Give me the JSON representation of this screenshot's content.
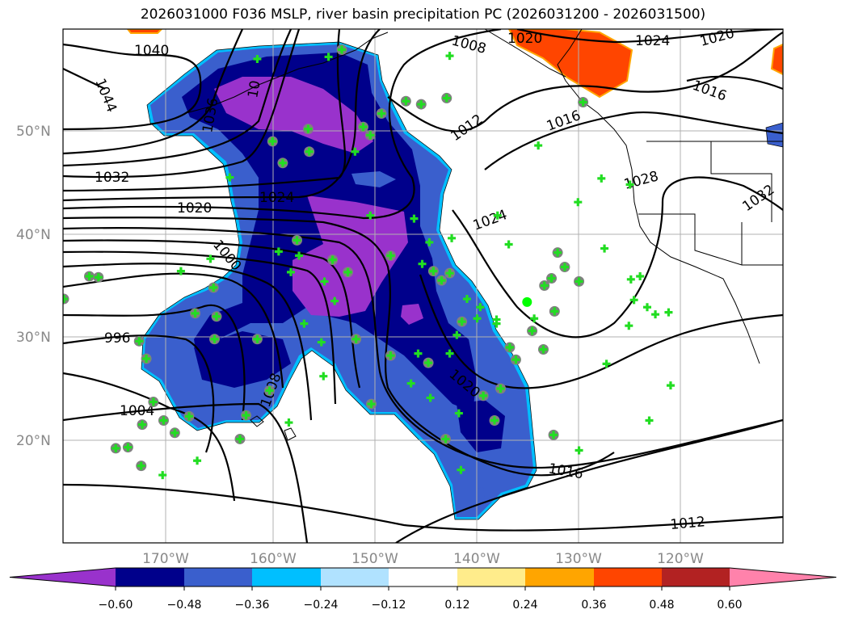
{
  "title": "2026031000 F036 MSLP, river basin precipitation PC (2026031200 - 2026031500)",
  "axes": {
    "lat_labels": [
      "50°N",
      "40°N",
      "30°N",
      "20°N"
    ],
    "lon_labels": [
      "170°W",
      "160°W",
      "150°W",
      "140°W",
      "130°W",
      "120°W"
    ],
    "extent": {
      "lon": [
        -180,
        -110
      ],
      "lat": [
        10,
        60
      ]
    }
  },
  "contour_labels": [
    "1040",
    "1044",
    "1036",
    "1032",
    "1024",
    "1020",
    "1000",
    "996",
    "1004",
    "1008",
    "1008",
    "1020",
    "1024",
    "1020",
    "1016",
    "1012",
    "1016",
    "1028",
    "1032",
    "1024",
    "1020",
    "1016",
    "1012",
    "10"
  ],
  "colorbar": {
    "ticks": [
      "−0.60",
      "−0.48",
      "−0.36",
      "−0.24",
      "−0.12",
      "0.12",
      "0.24",
      "0.36",
      "0.48",
      "0.60"
    ],
    "colors": [
      "#9932cc",
      "#00008b",
      "#3a5fcd",
      "#00bfff",
      "#b0e2ff",
      "#ffffff",
      "#ffec8b",
      "#ffa500",
      "#ff4500",
      "#b22222",
      "#ff82ab"
    ]
  },
  "colors": {
    "station_plus": "#22dd22",
    "station_circle": "#808080",
    "station_dot": "#00ff00"
  },
  "stations": {
    "circle": [
      [
        -177.5,
        36.0
      ],
      [
        -176.6,
        35.9
      ],
      [
        -172.3,
        21.6
      ],
      [
        -174.9,
        19.3
      ],
      [
        -173.7,
        19.4
      ],
      [
        -172.4,
        17.6
      ],
      [
        -171.2,
        23.8
      ],
      [
        -170.2,
        22.0
      ],
      [
        -169.1,
        20.8
      ],
      [
        -167.7,
        22.4
      ],
      [
        -165.3,
        34.9
      ],
      [
        -167.1,
        32.4
      ],
      [
        -165.0,
        32.1
      ],
      [
        -165.2,
        29.9
      ],
      [
        -162.7,
        20.2
      ],
      [
        -162.1,
        22.5
      ],
      [
        -161.0,
        29.9
      ],
      [
        -159.8,
        24.9
      ],
      [
        -159.5,
        49.1
      ],
      [
        -158.5,
        47.0
      ],
      [
        -157.1,
        39.5
      ],
      [
        -156.0,
        50.3
      ],
      [
        -155.9,
        48.1
      ],
      [
        -153.6,
        37.6
      ],
      [
        -152.7,
        58.0
      ],
      [
        -152.1,
        36.4
      ],
      [
        -151.3,
        29.9
      ],
      [
        -150.6,
        50.5
      ],
      [
        -149.9,
        49.7
      ],
      [
        -149.8,
        23.6
      ],
      [
        -148.8,
        51.8
      ],
      [
        -147.9,
        38.0
      ],
      [
        -147.9,
        28.3
      ],
      [
        -146.4,
        53.0
      ],
      [
        -144.9,
        52.7
      ],
      [
        -144.2,
        27.6
      ],
      [
        -143.7,
        36.5
      ],
      [
        -142.9,
        35.6
      ],
      [
        -142.4,
        53.3
      ],
      [
        -142.1,
        36.3
      ],
      [
        -140.9,
        31.6
      ],
      [
        -138.8,
        24.4
      ],
      [
        -137.7,
        22.0
      ],
      [
        -137.1,
        25.1
      ],
      [
        -136.2,
        29.1
      ],
      [
        -135.6,
        27.9
      ],
      [
        -134.0,
        30.7
      ],
      [
        -132.9,
        28.9
      ],
      [
        -132.8,
        35.1
      ],
      [
        -132.1,
        35.8
      ],
      [
        -131.8,
        32.6
      ],
      [
        -131.5,
        38.3
      ],
      [
        -130.8,
        36.9
      ],
      [
        -129.4,
        35.5
      ],
      [
        -129.0,
        52.9
      ],
      [
        -142.5,
        20.2
      ],
      [
        -131.9,
        20.6
      ],
      [
        -171.9,
        28.0
      ],
      [
        -172.6,
        29.7
      ],
      [
        -180.0,
        33.8
      ]
    ],
    "plus": [
      [
        -161.0,
        57.1
      ],
      [
        -154.0,
        57.3
      ],
      [
        -142.1,
        57.4
      ],
      [
        -163.7,
        45.6
      ],
      [
        -151.4,
        48.1
      ],
      [
        -149.9,
        41.9
      ],
      [
        -154.4,
        35.5
      ],
      [
        -153.4,
        33.6
      ],
      [
        -156.4,
        31.4
      ],
      [
        -154.7,
        29.6
      ],
      [
        -154.5,
        26.3
      ],
      [
        -157.9,
        21.8
      ],
      [
        -166.9,
        18.1
      ],
      [
        -170.3,
        16.7
      ],
      [
        -168.5,
        36.5
      ],
      [
        -165.6,
        37.7
      ],
      [
        -158.9,
        38.4
      ],
      [
        -157.7,
        36.4
      ],
      [
        -156.9,
        38.0
      ],
      [
        -145.6,
        41.6
      ],
      [
        -144.8,
        37.2
      ],
      [
        -144.1,
        39.3
      ],
      [
        -141.9,
        39.7
      ],
      [
        -145.2,
        28.5
      ],
      [
        -145.9,
        25.6
      ],
      [
        -144.0,
        24.2
      ],
      [
        -142.1,
        28.5
      ],
      [
        -141.4,
        30.3
      ],
      [
        -141.2,
        22.7
      ],
      [
        -140.4,
        33.8
      ],
      [
        -139.4,
        31.9
      ],
      [
        -141.0,
        17.2
      ],
      [
        -139.1,
        33.0
      ],
      [
        -137.5,
        31.8
      ],
      [
        -137.5,
        31.4
      ],
      [
        -136.3,
        39.1
      ],
      [
        -137.4,
        41.9
      ],
      [
        -133.4,
        48.7
      ],
      [
        -133.8,
        31.9
      ],
      [
        -127.2,
        45.5
      ],
      [
        -124.4,
        44.9
      ],
      [
        -124.3,
        35.7
      ],
      [
        -124.0,
        33.7
      ],
      [
        -123.4,
        36.0
      ],
      [
        -122.7,
        33.0
      ],
      [
        -121.9,
        32.3
      ],
      [
        -120.6,
        32.5
      ],
      [
        -124.5,
        31.2
      ],
      [
        -126.7,
        27.5
      ],
      [
        -122.5,
        22.0
      ],
      [
        -129.4,
        19.1
      ],
      [
        -120.4,
        25.4
      ],
      [
        -129.5,
        43.2
      ],
      [
        -126.9,
        38.7
      ]
    ],
    "dot": [
      [
        -134.5,
        33.5
      ]
    ]
  }
}
